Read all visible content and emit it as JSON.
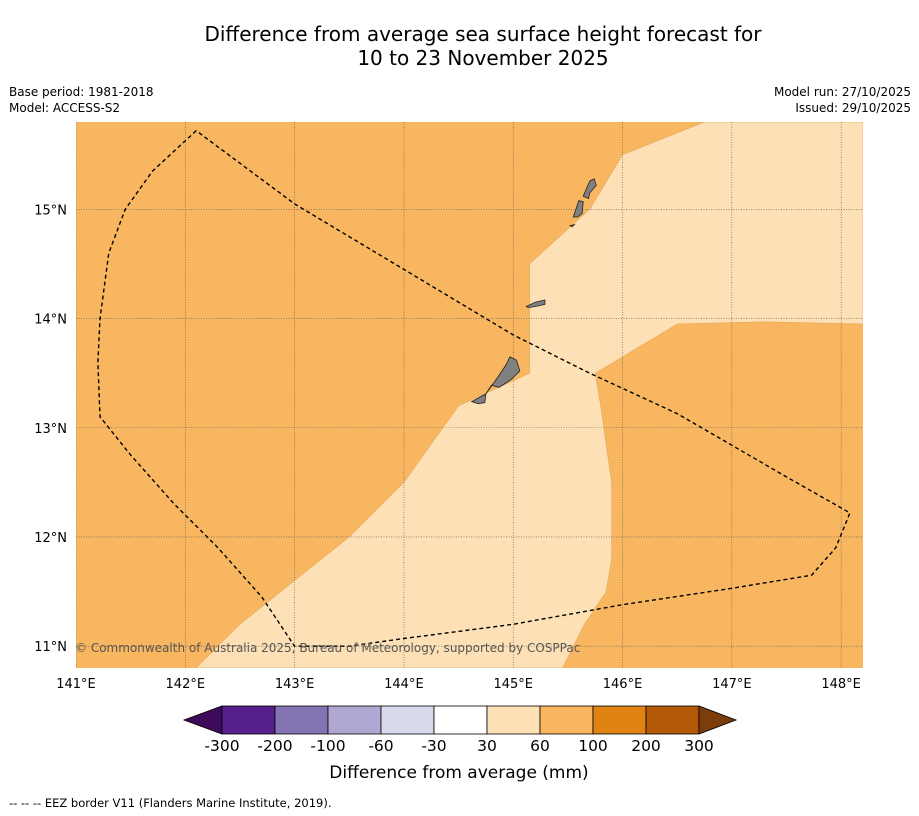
{
  "title": {
    "line1": "Difference from average sea surface height forecast for",
    "line2": "10 to 23 November 2025"
  },
  "info_left": {
    "base_period": "Base period: 1981-2018",
    "model": "Model: ACCESS-S2"
  },
  "info_right": {
    "model_run": "Model run: 27/10/2025",
    "issued": "Issued: 29/10/2025"
  },
  "map": {
    "copyright": "© Commonwealth of Australia 2025, Bureau of Meteorology, supported by COSPPac",
    "lon_range": [
      141.0,
      148.2
    ],
    "lat_range": [
      10.8,
      15.8
    ],
    "lon_ticks": [
      {
        "value": 141,
        "label": "141°E"
      },
      {
        "value": 142,
        "label": "142°E"
      },
      {
        "value": 143,
        "label": "143°E"
      },
      {
        "value": 144,
        "label": "144°E"
      },
      {
        "value": 145,
        "label": "145°E"
      },
      {
        "value": 146,
        "label": "146°E"
      },
      {
        "value": 147,
        "label": "147°E"
      },
      {
        "value": 148,
        "label": "148°E"
      }
    ],
    "lat_ticks": [
      {
        "value": 11,
        "label": "11°N"
      },
      {
        "value": 12,
        "label": "12°N"
      },
      {
        "value": 13,
        "label": "13°N"
      },
      {
        "value": 14,
        "label": "14°N"
      },
      {
        "value": 15,
        "label": "15°N"
      }
    ],
    "colors": {
      "band_60_100": "#f9b660",
      "band_30_60": "#fde0b5",
      "land": "#808080",
      "grid": "#555555",
      "eez": "#000000"
    },
    "bands": [
      {
        "name": "light-band",
        "range": "30 to 60",
        "polygon": [
          [
            142.1,
            10.8
          ],
          [
            142.5,
            11.2
          ],
          [
            143.0,
            11.6
          ],
          [
            143.5,
            12.0
          ],
          [
            144.0,
            12.5
          ],
          [
            144.5,
            13.2
          ],
          [
            145.15,
            13.5
          ],
          [
            145.15,
            14.5
          ],
          [
            145.7,
            15.0
          ],
          [
            146.0,
            15.5
          ],
          [
            146.5,
            15.7
          ],
          [
            146.75,
            15.8
          ],
          [
            148.2,
            15.8
          ],
          [
            148.2,
            13.95
          ],
          [
            147.3,
            13.97
          ],
          [
            146.5,
            13.95
          ],
          [
            145.75,
            13.5
          ],
          [
            145.8,
            13.2
          ],
          [
            145.9,
            12.5
          ],
          [
            145.9,
            11.8
          ],
          [
            145.85,
            11.5
          ],
          [
            145.65,
            11.2
          ],
          [
            145.45,
            10.8
          ]
        ]
      }
    ],
    "islands": [
      {
        "name": "guam",
        "polygon": [
          [
            144.62,
            13.24
          ],
          [
            144.75,
            13.31
          ],
          [
            144.85,
            13.45
          ],
          [
            144.93,
            13.57
          ],
          [
            144.97,
            13.65
          ],
          [
            145.03,
            13.62
          ],
          [
            145.06,
            13.52
          ],
          [
            144.98,
            13.44
          ],
          [
            144.87,
            13.37
          ],
          [
            144.8,
            13.39
          ],
          [
            144.75,
            13.31
          ],
          [
            144.74,
            13.23
          ],
          [
            144.68,
            13.22
          ]
        ]
      },
      {
        "name": "rota",
        "polygon": [
          [
            145.12,
            14.11
          ],
          [
            145.2,
            14.15
          ],
          [
            145.29,
            14.17
          ],
          [
            145.29,
            14.13
          ],
          [
            145.2,
            14.11
          ],
          [
            145.14,
            14.1
          ]
        ]
      },
      {
        "name": "tinian",
        "polygon": [
          [
            145.55,
            14.93
          ],
          [
            145.6,
            15.08
          ],
          [
            145.64,
            15.07
          ],
          [
            145.63,
            14.96
          ],
          [
            145.59,
            14.93
          ]
        ]
      },
      {
        "name": "saipan",
        "polygon": [
          [
            145.64,
            15.12
          ],
          [
            145.7,
            15.26
          ],
          [
            145.74,
            15.28
          ],
          [
            145.76,
            15.22
          ],
          [
            145.7,
            15.15
          ],
          [
            145.69,
            15.1
          ]
        ]
      },
      {
        "name": "aguijan",
        "polygon": [
          [
            145.52,
            14.85
          ],
          [
            145.56,
            14.86
          ],
          [
            145.54,
            14.84
          ]
        ]
      }
    ],
    "eez_border": [
      [
        142.1,
        15.72
      ],
      [
        141.7,
        15.35
      ],
      [
        141.45,
        15.0
      ],
      [
        141.3,
        14.6
      ],
      [
        141.22,
        14.0
      ],
      [
        141.2,
        13.6
      ],
      [
        141.22,
        13.1
      ],
      [
        141.5,
        12.75
      ],
      [
        141.9,
        12.3
      ],
      [
        142.3,
        11.9
      ],
      [
        142.7,
        11.45
      ],
      [
        143.0,
        11.0
      ],
      [
        143.5,
        11.0
      ],
      [
        144.0,
        11.07
      ],
      [
        145.0,
        11.2
      ],
      [
        146.0,
        11.38
      ],
      [
        147.0,
        11.53
      ],
      [
        147.73,
        11.65
      ],
      [
        147.95,
        11.9
      ],
      [
        148.08,
        12.22
      ],
      [
        147.5,
        12.55
      ],
      [
        146.5,
        13.13
      ],
      [
        145.7,
        13.5
      ],
      [
        145.0,
        13.85
      ],
      [
        144.0,
        14.45
      ],
      [
        143.0,
        15.05
      ],
      [
        142.1,
        15.72
      ]
    ]
  },
  "colorbar": {
    "title": "Difference from average (mm)",
    "extend_low_color": "#3d0b5a",
    "extend_high_color": "#7c3d0d",
    "bins": [
      {
        "color": "#55208c"
      },
      {
        "color": "#8473b3"
      },
      {
        "color": "#b0a8d3"
      },
      {
        "color": "#d9d9ec"
      },
      {
        "color": "#ffffff"
      },
      {
        "color": "#fde0b5"
      },
      {
        "color": "#f9b660"
      },
      {
        "color": "#e08214"
      },
      {
        "color": "#b35806"
      }
    ],
    "labels": [
      "-300",
      "-200",
      "-100",
      "-60",
      "-30",
      "30",
      "60",
      "100",
      "200",
      "300"
    ]
  },
  "footnote": "--  --  -- EEZ border V11 (Flanders Marine Institute, 2019)."
}
